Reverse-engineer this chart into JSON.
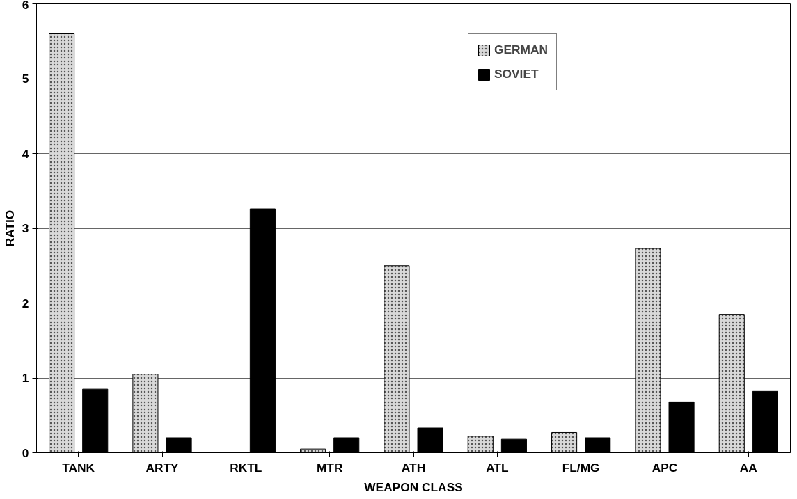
{
  "chart_data": {
    "type": "bar",
    "xlabel": "WEAPON CLASS",
    "ylabel": "RATIO",
    "categories": [
      "TANK",
      "ARTY",
      "RKTL",
      "MTR",
      "ATH",
      "ATL",
      "FL/MG",
      "APC",
      "AA"
    ],
    "series": [
      {
        "name": "GERMAN",
        "color": "#d9d9d9",
        "values": [
          5.6,
          1.05,
          null,
          0.05,
          2.5,
          0.22,
          0.27,
          2.73,
          1.85
        ]
      },
      {
        "name": "SOVIET",
        "color": "#000000",
        "values": [
          0.85,
          0.2,
          3.26,
          0.2,
          0.33,
          0.18,
          0.2,
          0.68,
          0.82
        ]
      }
    ],
    "ylim": [
      0,
      6
    ],
    "yticks": [
      0,
      1,
      2,
      3,
      4,
      5,
      6
    ],
    "grid": "y",
    "legend": "top right"
  }
}
